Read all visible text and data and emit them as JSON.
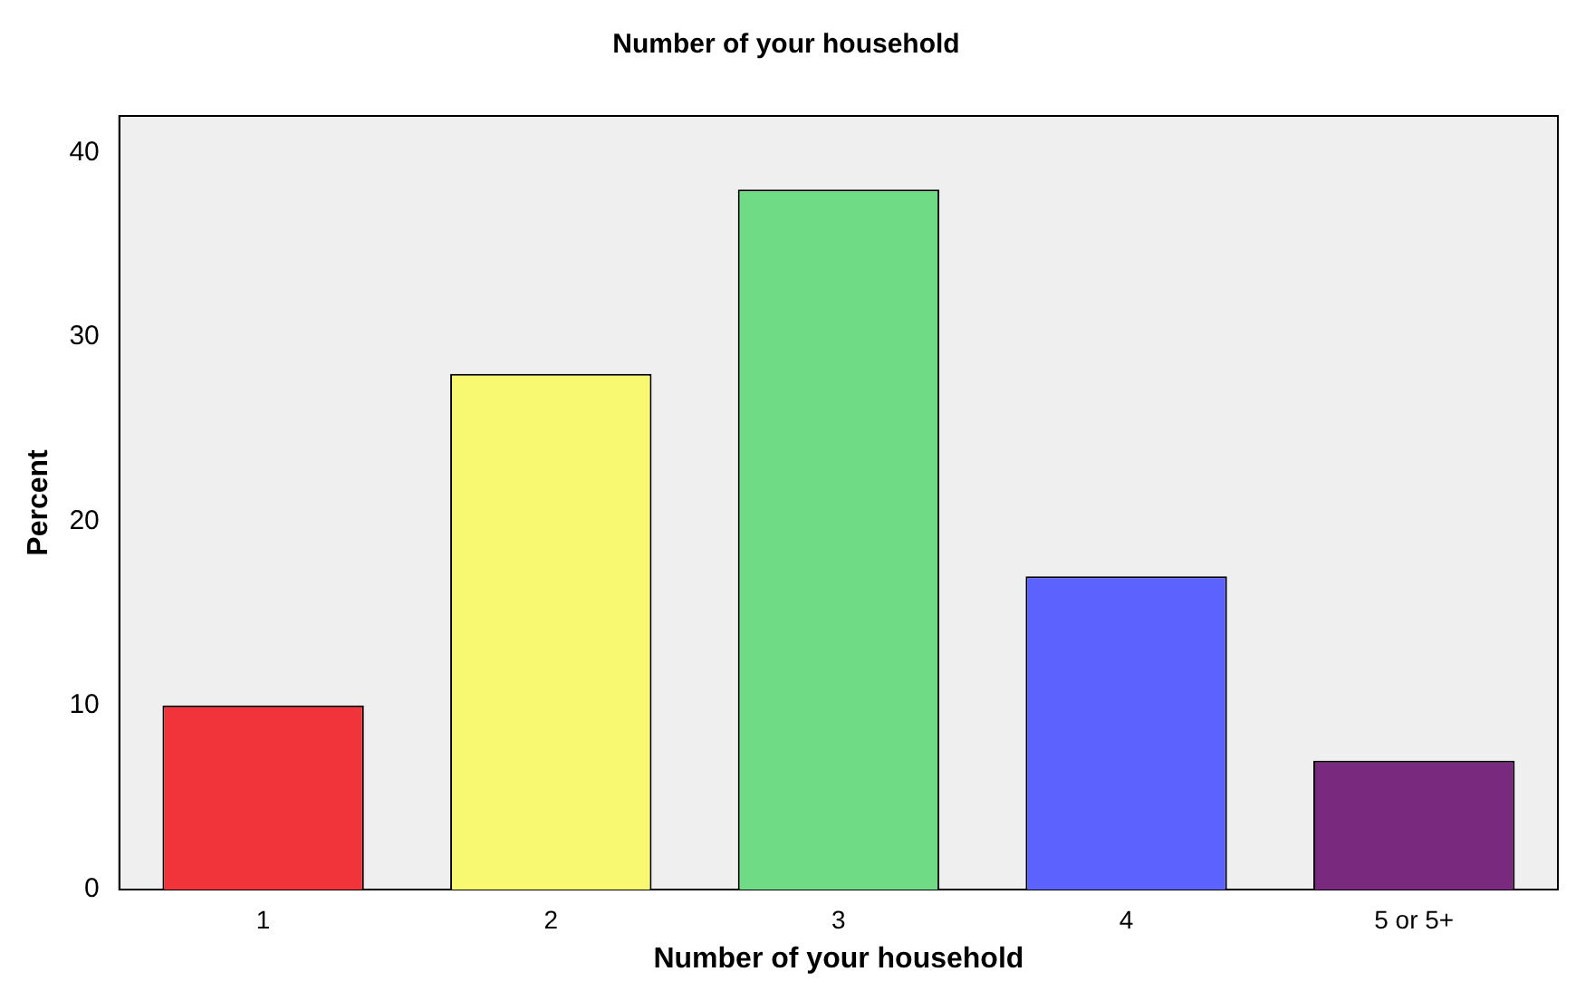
{
  "chart_data": {
    "type": "bar",
    "title": "Number of your household",
    "xlabel": "Number of your household",
    "ylabel": "Percent",
    "categories": [
      "1",
      "2",
      "3",
      "4",
      "5 or 5+"
    ],
    "values": [
      10,
      28,
      38,
      17,
      7
    ],
    "colors": [
      "#f0343a",
      "#f9f871",
      "#70db85",
      "#5c62fe",
      "#7a2a7e"
    ],
    "ylim": [
      0,
      42
    ],
    "yticks": [
      0,
      10,
      20,
      30,
      40
    ],
    "grid": false,
    "legend": false
  }
}
